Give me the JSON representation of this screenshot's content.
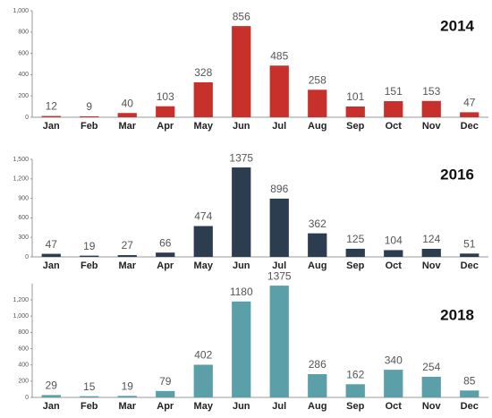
{
  "chart_data": [
    {
      "type": "bar",
      "title": "2014",
      "categories": [
        "Jan",
        "Feb",
        "Mar",
        "Apr",
        "May",
        "Jun",
        "Jul",
        "Aug",
        "Sep",
        "Oct",
        "Nov",
        "Dec"
      ],
      "values": [
        12,
        9,
        40,
        103,
        328,
        856,
        485,
        258,
        101,
        151,
        153,
        47
      ],
      "color": "#c8302c",
      "ylim": [
        0,
        1000
      ],
      "yticks": [
        0,
        200,
        400,
        600,
        800,
        {
          "value": 1000,
          "label": "1,000"
        }
      ]
    },
    {
      "type": "bar",
      "title": "2016",
      "categories": [
        "Jan",
        "Feb",
        "Mar",
        "Apr",
        "May",
        "Jun",
        "Jul",
        "Aug",
        "Sep",
        "Oct",
        "Nov",
        "Dec"
      ],
      "values": [
        47,
        19,
        27,
        66,
        474,
        1375,
        896,
        362,
        125,
        104,
        124,
        51
      ],
      "color": "#2b3d4f",
      "ylim": [
        0,
        1500
      ],
      "yticks": [
        0,
        300,
        600,
        900,
        {
          "value": 1200,
          "label": "1,200"
        },
        {
          "value": 1500,
          "label": "1,500"
        }
      ]
    },
    {
      "type": "bar",
      "title": "2018",
      "categories": [
        "Jan",
        "Feb",
        "Mar",
        "Apr",
        "May",
        "Jun",
        "Jul",
        "Aug",
        "Sep",
        "Oct",
        "Nov",
        "Dec"
      ],
      "values": [
        29,
        15,
        19,
        79,
        402,
        1180,
        1375,
        286,
        162,
        340,
        254,
        85
      ],
      "color": "#5b9fa8",
      "ylim": [
        0,
        1400
      ],
      "yticks": [
        0,
        200,
        400,
        600,
        800,
        {
          "value": 1000,
          "label": "1,000"
        },
        {
          "value": 1200,
          "label": "1,200"
        }
      ]
    }
  ]
}
